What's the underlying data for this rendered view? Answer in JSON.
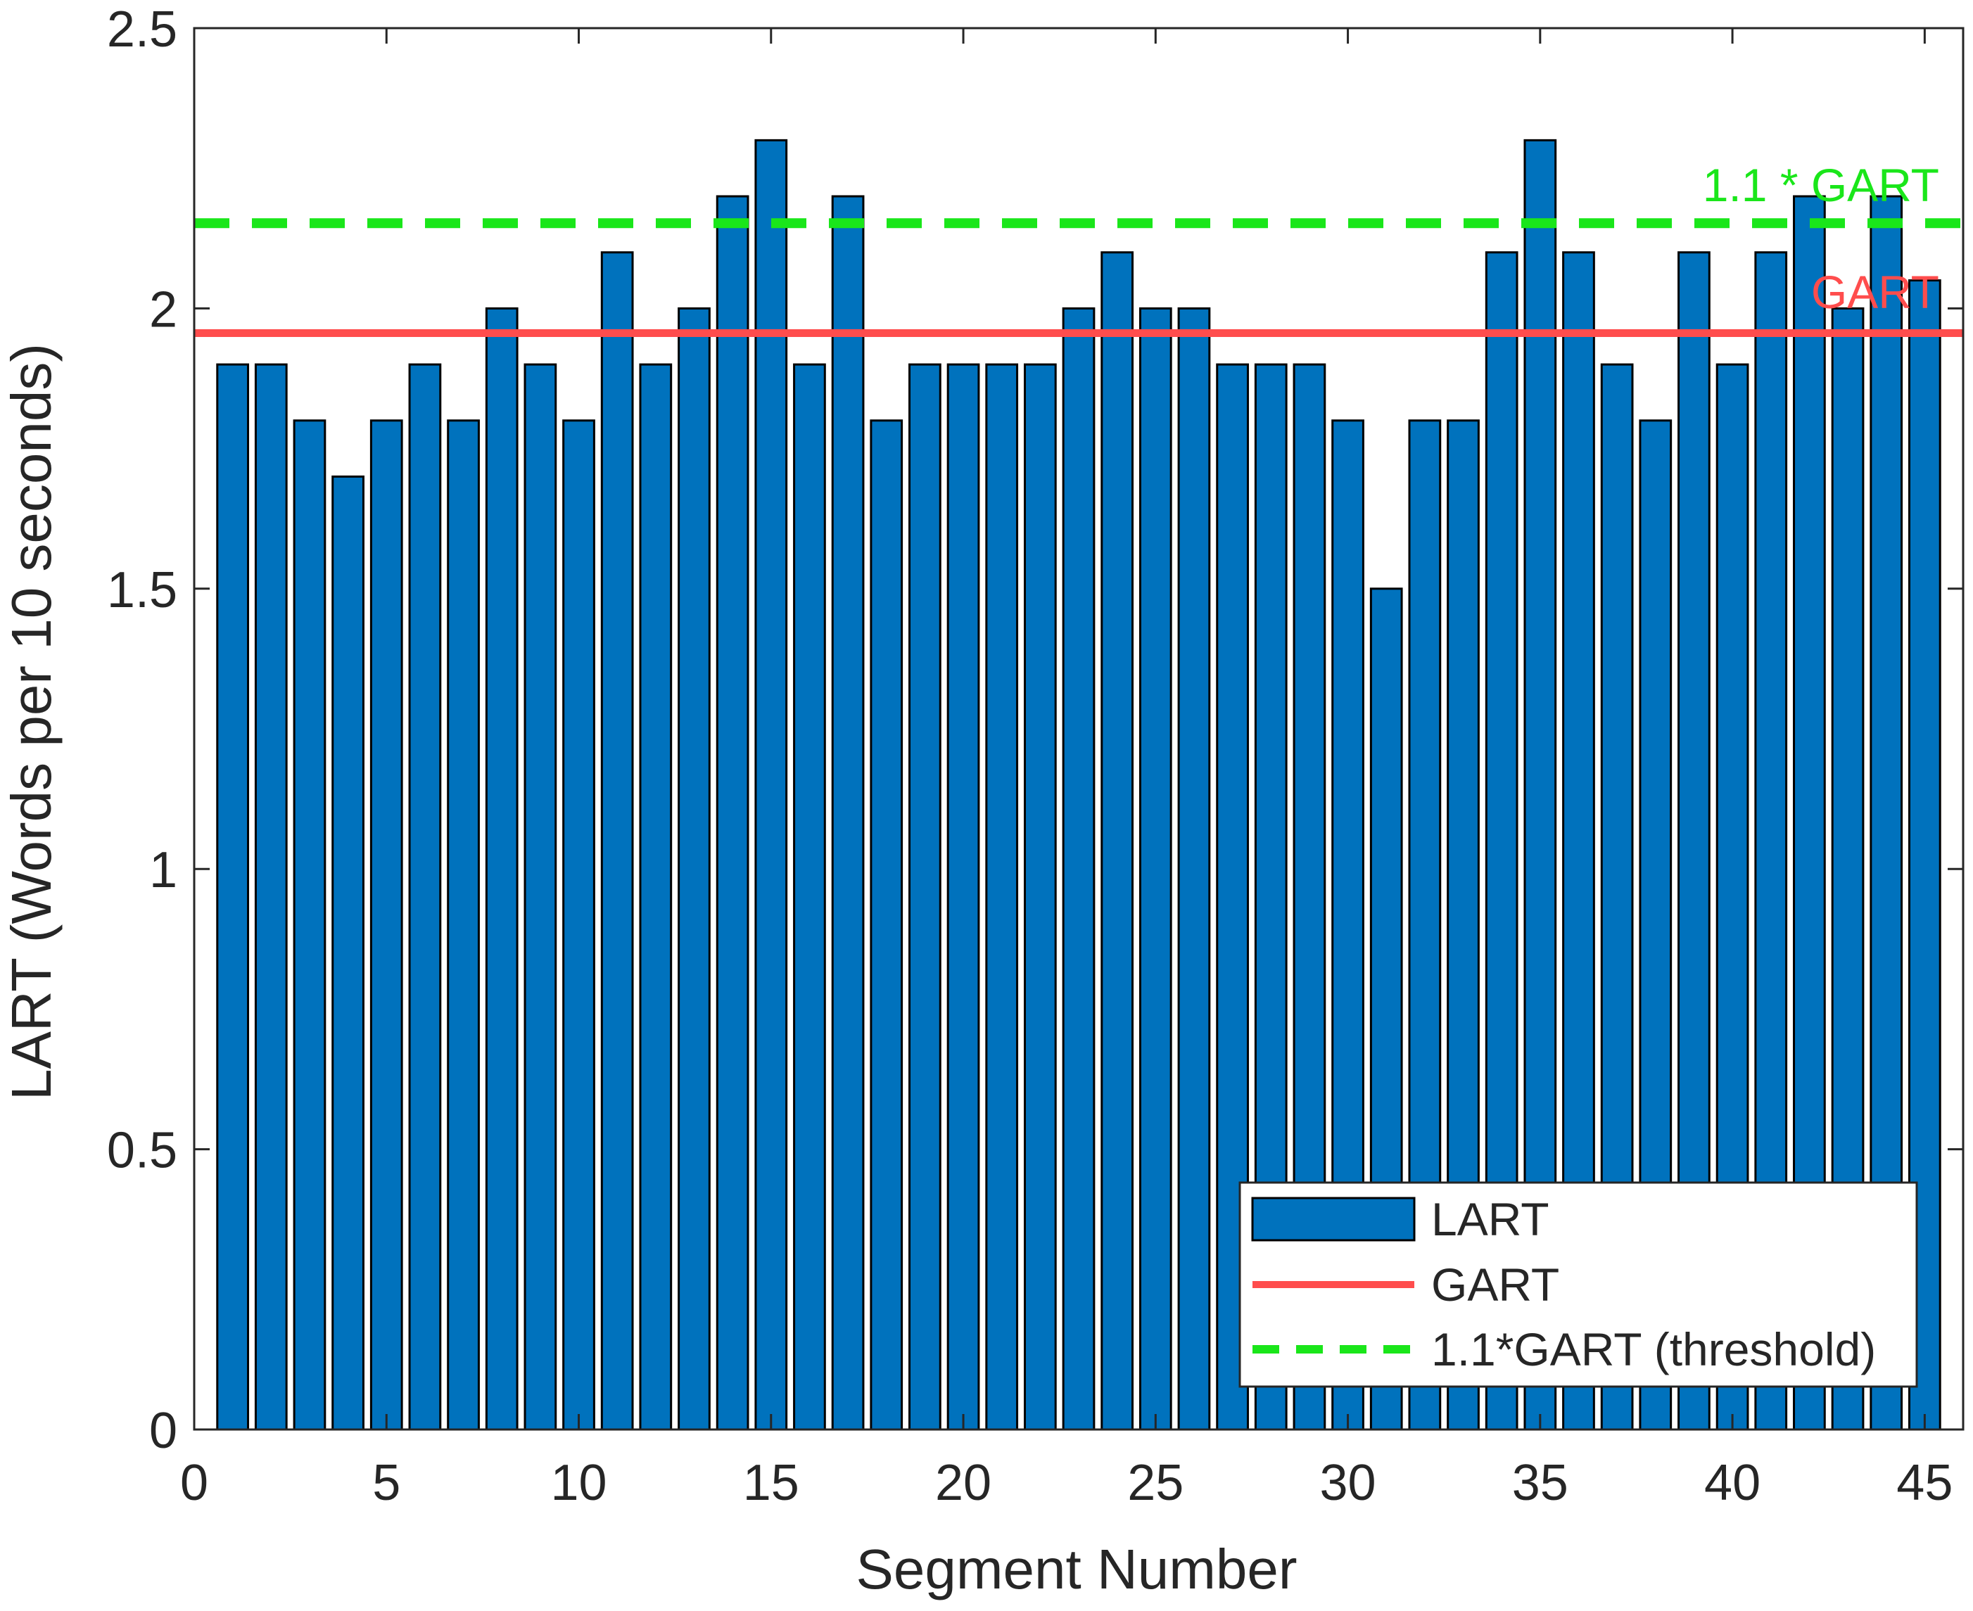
{
  "chart_data": {
    "type": "bar",
    "title": "",
    "xlabel": "Segment Number",
    "ylabel": "LART (Words per 10 seconds)",
    "xlim": [
      0,
      46
    ],
    "ylim": [
      0,
      2.5
    ],
    "xticks": [
      0,
      5,
      10,
      15,
      20,
      25,
      30,
      35,
      40,
      45
    ],
    "yticks": [
      0,
      0.5,
      1,
      1.5,
      2,
      2.5
    ],
    "xtick_labels": [
      "0",
      "5",
      "10",
      "15",
      "20",
      "25",
      "30",
      "35",
      "40",
      "45"
    ],
    "ytick_labels": [
      "0",
      "0.5",
      "1",
      "1.5",
      "2",
      "2.5"
    ],
    "categories": [
      1,
      2,
      3,
      4,
      5,
      6,
      7,
      8,
      9,
      10,
      11,
      12,
      13,
      14,
      15,
      16,
      17,
      18,
      19,
      20,
      21,
      22,
      23,
      24,
      25,
      26,
      27,
      28,
      29,
      30,
      31,
      32,
      33,
      34,
      35,
      36,
      37,
      38,
      39,
      40,
      41,
      42,
      43,
      44,
      45
    ],
    "series": [
      {
        "name": "LART",
        "color": "#0072BD",
        "values": [
          1.9,
          1.9,
          1.8,
          1.7,
          1.8,
          1.9,
          1.8,
          2.0,
          1.9,
          1.8,
          2.1,
          1.9,
          2.0,
          2.2,
          2.3,
          1.9,
          2.2,
          1.8,
          1.9,
          1.9,
          1.9,
          1.9,
          2.0,
          2.1,
          2.0,
          2.0,
          1.9,
          1.9,
          1.9,
          1.8,
          1.5,
          1.8,
          1.8,
          2.1,
          2.3,
          2.1,
          1.9,
          1.8,
          2.1,
          1.9,
          2.1,
          2.2,
          2.0,
          2.2,
          2.05
        ]
      }
    ],
    "reference_lines": [
      {
        "name": "GART",
        "value": 1.956,
        "color": "#FF4D4D",
        "style": "solid",
        "annotation": "GART"
      },
      {
        "name": "1.1*GART (threshold)",
        "value": 2.152,
        "color": "#1AE61A",
        "style": "dashed",
        "annotation": "1.1 * GART"
      }
    ],
    "legend": {
      "position": "bottom-right",
      "entries": [
        "LART",
        "GART",
        "1.1*GART (threshold)"
      ]
    }
  }
}
